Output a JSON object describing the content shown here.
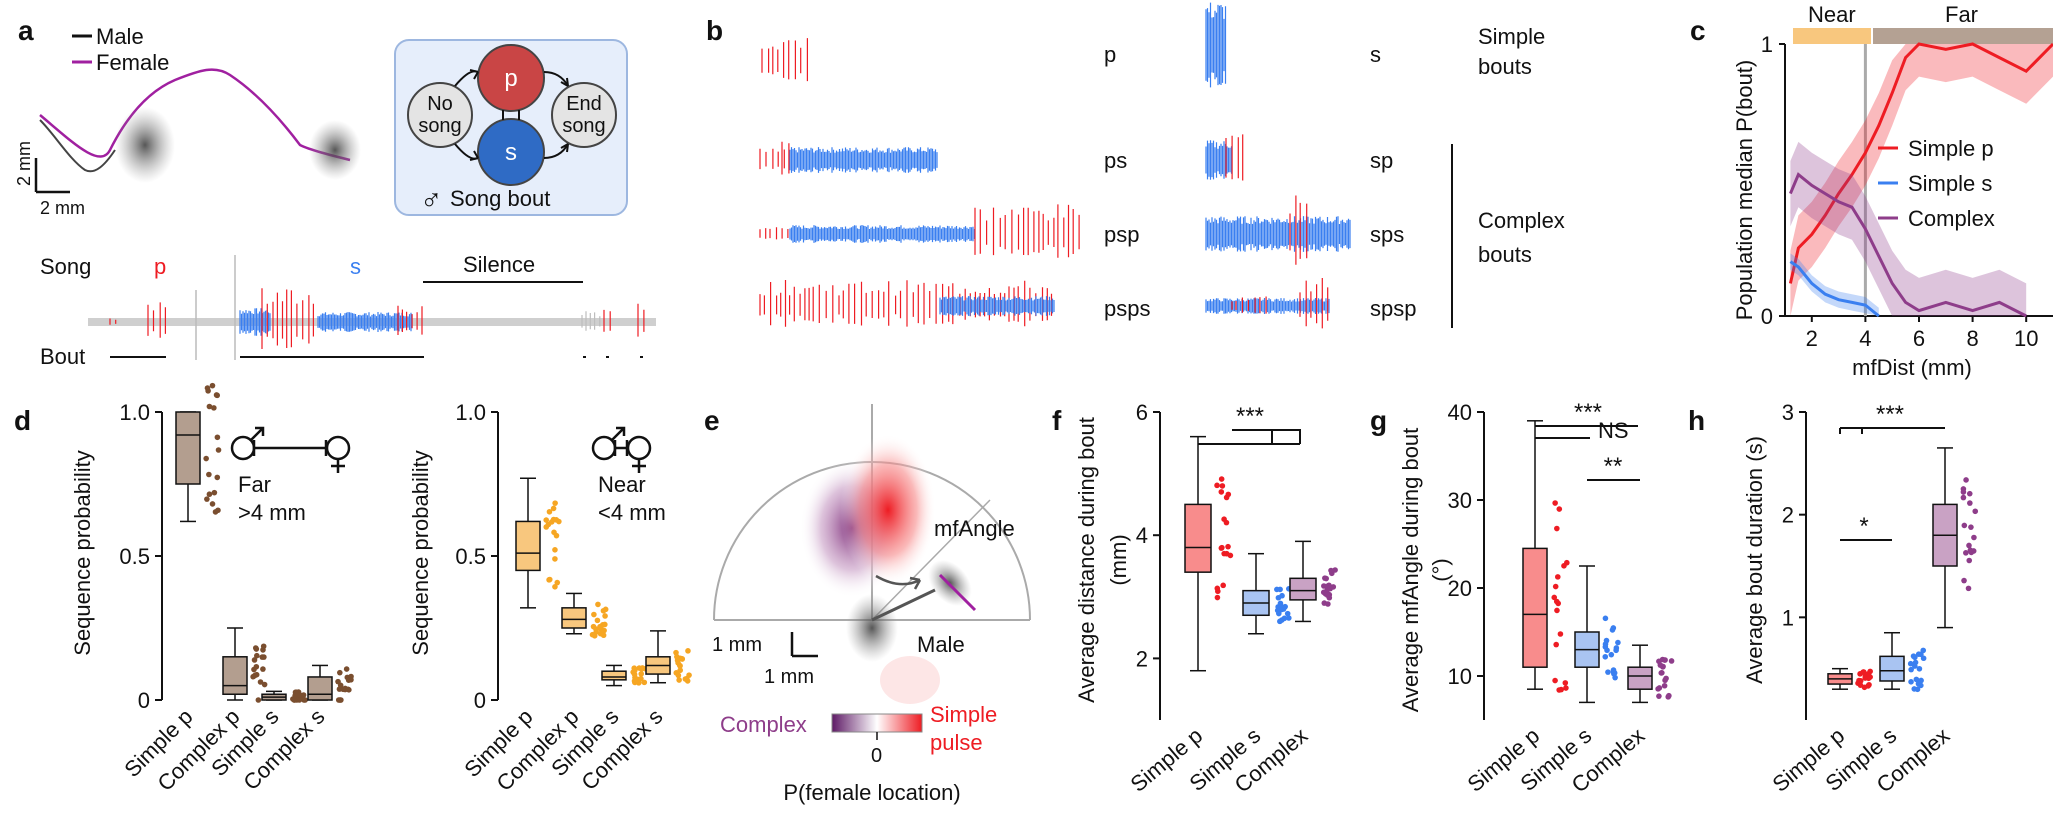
{
  "panels": {
    "a": "a",
    "b": "b",
    "c": "c",
    "d": "d",
    "e": "e",
    "f": "f",
    "g": "g",
    "h": "h"
  },
  "colors": {
    "pulse": "#ee1c23",
    "sine": "#3a7ff0",
    "complex": "#8e3d8a",
    "far": "#9c7f6f",
    "near": "#f6a623",
    "grey": "#bdbdbd"
  },
  "panel_a": {
    "legend_male": "Male",
    "legend_female": "Female",
    "scale_v": "2 mm",
    "scale_h": "2 mm",
    "diagram": {
      "no_song": [
        "No",
        "song"
      ],
      "p": "p",
      "s": "s",
      "end_song": [
        "End",
        "song"
      ],
      "caption": "Song bout",
      "male_symbol": "♂"
    },
    "song_label": "Song",
    "bout_label": "Bout",
    "p_label": "p",
    "s_label": "s",
    "silence_label": "Silence"
  },
  "panel_b": {
    "left_labels": [
      "p",
      "ps",
      "psp",
      "psps"
    ],
    "right_labels": [
      "s",
      "sp",
      "sps",
      "spsp"
    ],
    "simple_bouts": [
      "Simple",
      "bouts"
    ],
    "complex_bouts": [
      "Complex",
      "bouts"
    ]
  },
  "panel_c": {
    "near": "Near",
    "far": "Far",
    "ylabel": "Population median P(bout)",
    "xlabel": "mfDist (mm)",
    "yticks": [
      "0",
      "1"
    ],
    "xticks": [
      "2",
      "4",
      "6",
      "8",
      "10"
    ],
    "legend": [
      "Simple p",
      "Simple s",
      "Complex"
    ]
  },
  "panel_d": {
    "ylabel": "Sequence probability",
    "yticks": [
      "0",
      "0.5",
      "1.0"
    ],
    "categories": [
      "Simple p",
      "Complex p",
      "Simple s",
      "Complex s"
    ],
    "far_label": [
      "Far",
      ">4 mm"
    ],
    "near_label": [
      "Near",
      "<4 mm"
    ]
  },
  "panel_e": {
    "mfangle": "mfAngle",
    "male": "Male",
    "scale_v": "1 mm",
    "scale_h": "1 mm",
    "cb_left": "Complex",
    "cb_zero": "0",
    "cb_right": [
      "Simple",
      "pulse"
    ],
    "xlabel": "P(female location)"
  },
  "panel_f": {
    "ylabel": "Average distance during bout",
    "yunit": "(mm)",
    "yticks": [
      "2",
      "4",
      "6"
    ],
    "categories": [
      "Simple p",
      "Simple s",
      "Complex"
    ],
    "sig": "***"
  },
  "panel_g": {
    "ylabel": "Average mfAngle during bout",
    "yunit": "(°)",
    "yticks": [
      "10",
      "20",
      "30",
      "40"
    ],
    "categories": [
      "Simple p",
      "Simple s",
      "Complex"
    ],
    "sig1": "***",
    "sig2": "NS",
    "sig3": "**"
  },
  "panel_h": {
    "ylabel": "Average bout duration (s)",
    "yticks": [
      "1",
      "2",
      "3"
    ],
    "categories": [
      "Simple p",
      "Simple s",
      "Complex"
    ],
    "sig1": "***",
    "sig2": "*"
  },
  "chart_data": [
    {
      "type": "line",
      "title": "",
      "xlabel": "mfDist (mm)",
      "ylabel": "Population median P(bout)",
      "xlim": [
        1,
        11
      ],
      "ylim": [
        0,
        1
      ],
      "series": [
        {
          "name": "Simple p",
          "x": [
            1.2,
            1.5,
            2,
            2.5,
            3,
            3.5,
            4,
            4.5,
            5,
            5.5,
            6,
            7,
            8,
            9,
            10,
            11
          ],
          "values": [
            0.12,
            0.25,
            0.3,
            0.37,
            0.45,
            0.52,
            0.6,
            0.7,
            0.82,
            0.95,
            1.0,
            0.98,
            1.0,
            0.95,
            0.9,
            1.0
          ]
        },
        {
          "name": "Simple s",
          "x": [
            1.2,
            1.5,
            2,
            2.5,
            3,
            3.5,
            4,
            4.5
          ],
          "values": [
            0.2,
            0.18,
            0.12,
            0.08,
            0.06,
            0.05,
            0.04,
            0.0
          ]
        },
        {
          "name": "Complex",
          "x": [
            1.2,
            1.5,
            2,
            2.5,
            3,
            3.5,
            4,
            4.5,
            5,
            5.5,
            6,
            7,
            8,
            9,
            10
          ],
          "values": [
            0.45,
            0.52,
            0.48,
            0.45,
            0.42,
            0.4,
            0.32,
            0.22,
            0.12,
            0.05,
            0.02,
            0.05,
            0.02,
            0.05,
            0.0
          ]
        }
      ]
    },
    {
      "type": "bar",
      "title": "Far >4 mm",
      "ylabel": "Sequence probability",
      "ylim": [
        0,
        1
      ],
      "categories": [
        "Simple p",
        "Complex p",
        "Simple s",
        "Complex s"
      ],
      "values": [
        0.92,
        0.05,
        0.01,
        0.02
      ]
    },
    {
      "type": "bar",
      "title": "Near <4 mm",
      "ylabel": "Sequence probability",
      "ylim": [
        0,
        1
      ],
      "categories": [
        "Simple p",
        "Complex p",
        "Simple s",
        "Complex s"
      ],
      "values": [
        0.51,
        0.28,
        0.08,
        0.12
      ]
    },
    {
      "type": "bar",
      "ylabel": "Average distance during bout (mm)",
      "ylim": [
        1,
        6
      ],
      "categories": [
        "Simple p",
        "Simple s",
        "Complex"
      ],
      "values": [
        3.8,
        2.9,
        3.1
      ]
    },
    {
      "type": "bar",
      "ylabel": "Average mfAngle during bout (°)",
      "ylim": [
        5,
        40
      ],
      "categories": [
        "Simple p",
        "Simple s",
        "Complex"
      ],
      "values": [
        17,
        13,
        10
      ]
    },
    {
      "type": "bar",
      "ylabel": "Average bout duration (s)",
      "ylim": [
        0,
        3
      ],
      "categories": [
        "Simple p",
        "Simple s",
        "Complex"
      ],
      "values": [
        0.4,
        0.5,
        1.8
      ]
    }
  ]
}
